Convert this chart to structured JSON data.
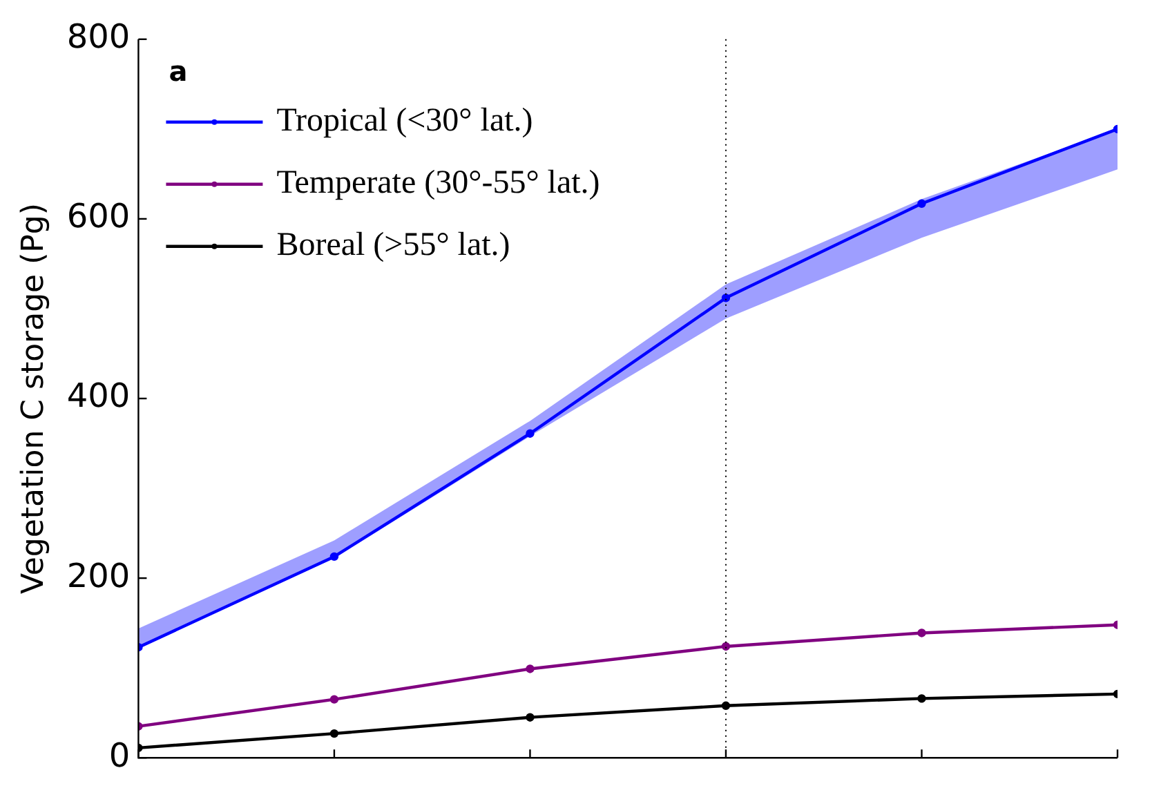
{
  "chart_data": {
    "type": "line",
    "ylabel": "Vegetation C storage (Pg)",
    "annotations": [
      "a"
    ],
    "categories": [
      null,
      null,
      null,
      null,
      null,
      null
    ],
    "series": [
      {
        "name": "Tropical (<30° lat.)",
        "color": "#0000ff",
        "values": [
          123,
          224,
          361,
          512,
          617,
          700
        ],
        "lower": [
          123,
          222,
          358,
          489,
          579,
          655
        ],
        "upper": [
          144,
          242,
          375,
          527,
          622,
          700
        ]
      },
      {
        "name": "Temperate (30°-55° lat.)",
        "color": "#800080",
        "values": [
          35,
          65,
          99,
          124,
          139,
          148
        ]
      },
      {
        "name": "Boreal (>55° lat.)",
        "color": "#000000",
        "values": [
          11,
          27,
          45,
          58,
          66,
          71
        ]
      }
    ],
    "ylim": [
      0,
      800
    ],
    "yticks": [
      0,
      200,
      400,
      600,
      800
    ],
    "tick_labels": "y",
    "legend": "top left",
    "marker": "circle",
    "grid": false
  }
}
